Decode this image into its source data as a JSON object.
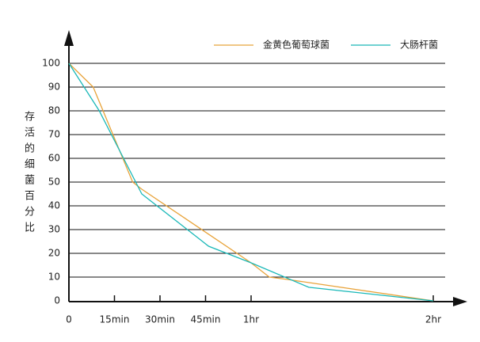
{
  "chart_data": {
    "type": "line",
    "ylabel": "存活的细菌百分比",
    "x_series_note_free": null,
    "xlim": [
      0,
      120
    ],
    "ylim": [
      0,
      100
    ],
    "xticks": [
      0,
      {
        "value": 15,
        "label": "15min"
      },
      {
        "value": 30,
        "label": "30min"
      },
      {
        "value": 45,
        "label": "45min"
      },
      {
        "value": 60,
        "label": "1hr"
      },
      {
        "value": 120,
        "label": "2hr"
      }
    ],
    "yticks": [
      0,
      10,
      20,
      30,
      40,
      50,
      60,
      70,
      80,
      90,
      100
    ],
    "grid": true,
    "series": [
      {
        "name": "金黄色葡萄球菌",
        "color": "#e8a33a",
        "x": [
          0,
          8,
          21,
          24,
          60,
          66,
          72,
          120
        ],
        "values": [
          100,
          90,
          50,
          47,
          16,
          10,
          9,
          0
        ]
      },
      {
        "name": "大肠杆菌",
        "color": "#1ab8b8",
        "x": [
          0,
          10,
          24,
          46,
          60,
          79,
          120
        ],
        "values": [
          100,
          80,
          45,
          23,
          16,
          5.7,
          0
        ]
      }
    ]
  }
}
